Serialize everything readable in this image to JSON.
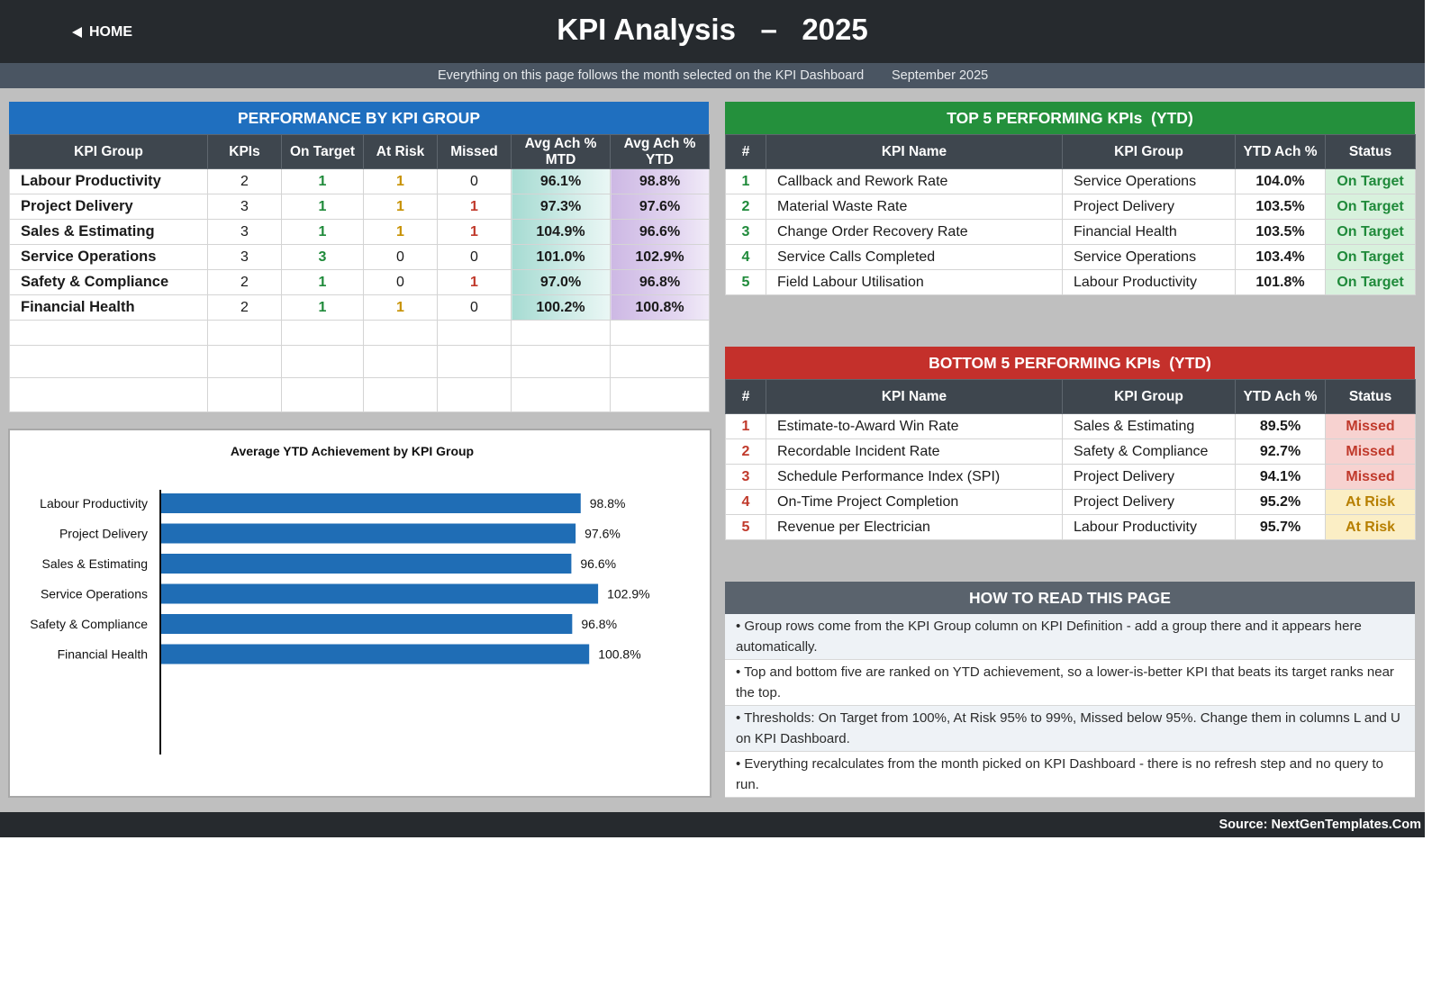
{
  "header": {
    "home_label": "HOME",
    "title_left": "KPI Analysis",
    "title_dash": "–",
    "title_year": "2025",
    "subtitle": "Everything on this page follows the month selected on the KPI Dashboard",
    "selected_month": "September 2025"
  },
  "colors": {
    "group_panel": "#1f6fbf",
    "top_panel": "#24903c",
    "bottom_panel": "#c4302b",
    "howto_panel": "#5a636d",
    "bar": "#1f6db5"
  },
  "groups": {
    "title": "PERFORMANCE BY KPI GROUP",
    "columns": [
      "KPI Group",
      "KPIs",
      "On Target",
      "At Risk",
      "Missed",
      "Avg Ach %\nMTD",
      "Avg Ach %\nYTD"
    ],
    "rows": [
      {
        "name": "Labour Productivity",
        "kpis": "2",
        "on": "1",
        "risk": "1",
        "missed": "0",
        "mtd": "96.1%",
        "ytd": "98.8%"
      },
      {
        "name": "Project Delivery",
        "kpis": "3",
        "on": "1",
        "risk": "1",
        "missed": "1",
        "mtd": "97.3%",
        "ytd": "97.6%"
      },
      {
        "name": "Sales & Estimating",
        "kpis": "3",
        "on": "1",
        "risk": "1",
        "missed": "1",
        "mtd": "104.9%",
        "ytd": "96.6%"
      },
      {
        "name": "Service Operations",
        "kpis": "3",
        "on": "3",
        "risk": "0",
        "missed": "0",
        "mtd": "101.0%",
        "ytd": "102.9%"
      },
      {
        "name": "Safety & Compliance",
        "kpis": "2",
        "on": "1",
        "risk": "0",
        "missed": "1",
        "mtd": "97.0%",
        "ytd": "96.8%"
      },
      {
        "name": "Financial Health",
        "kpis": "2",
        "on": "1",
        "risk": "1",
        "missed": "0",
        "mtd": "100.2%",
        "ytd": "100.8%"
      }
    ]
  },
  "top5": {
    "title": "TOP 5 PERFORMING KPIs  (YTD)",
    "columns": [
      "#",
      "KPI Name",
      "KPI Group",
      "YTD Ach %",
      "Status"
    ],
    "rows": [
      {
        "rank": "1",
        "name": "Callback and Rework Rate",
        "group": "Service Operations",
        "ytd": "104.0%",
        "status": "On Target"
      },
      {
        "rank": "2",
        "name": "Material Waste Rate",
        "group": "Project Delivery",
        "ytd": "103.5%",
        "status": "On Target"
      },
      {
        "rank": "3",
        "name": "Change Order Recovery Rate",
        "group": "Financial Health",
        "ytd": "103.5%",
        "status": "On Target"
      },
      {
        "rank": "4",
        "name": "Service Calls Completed",
        "group": "Service Operations",
        "ytd": "103.4%",
        "status": "On Target"
      },
      {
        "rank": "5",
        "name": "Field Labour Utilisation",
        "group": "Labour Productivity",
        "ytd": "101.8%",
        "status": "On Target"
      }
    ]
  },
  "bottom5": {
    "title": "BOTTOM 5 PERFORMING KPIs  (YTD)",
    "columns": [
      "#",
      "KPI Name",
      "KPI Group",
      "YTD Ach %",
      "Status"
    ],
    "rows": [
      {
        "rank": "1",
        "name": "Estimate-to-Award Win Rate",
        "group": "Sales & Estimating",
        "ytd": "89.5%",
        "status": "Missed"
      },
      {
        "rank": "2",
        "name": "Recordable Incident Rate",
        "group": "Safety & Compliance",
        "ytd": "92.7%",
        "status": "Missed"
      },
      {
        "rank": "3",
        "name": "Schedule Performance Index (SPI)",
        "group": "Project Delivery",
        "ytd": "94.1%",
        "status": "Missed"
      },
      {
        "rank": "4",
        "name": "On-Time Project Completion",
        "group": "Project Delivery",
        "ytd": "95.2%",
        "status": "At Risk"
      },
      {
        "rank": "5",
        "name": "Revenue per Electrician",
        "group": "Labour Productivity",
        "ytd": "95.7%",
        "status": "At Risk"
      }
    ]
  },
  "howto": {
    "title": "HOW TO READ THIS PAGE",
    "items": [
      "•  Group rows come from the KPI Group column on KPI Definition - add a group there and it appears here automatically.",
      "•  Top and bottom five are ranked on YTD achievement, so a lower-is-better KPI that beats its target ranks near the top.",
      "•  Thresholds: On Target from 100%, At Risk 95% to 99%, Missed below 95%. Change them in columns L and U on KPI Dashboard.",
      "•  Everything recalculates from the month picked on KPI Dashboard - there is no refresh step and no query to run."
    ]
  },
  "footer": {
    "source": "Source: NextGenTemplates.Com"
  },
  "chart_data": {
    "type": "bar",
    "orientation": "horizontal",
    "title": "Average YTD Achievement by KPI Group",
    "categories": [
      "Labour Productivity",
      "Project Delivery",
      "Sales & Estimating",
      "Service Operations",
      "Safety & Compliance",
      "Financial Health"
    ],
    "values": [
      98.8,
      97.6,
      96.6,
      102.9,
      96.8,
      100.8
    ],
    "value_labels": [
      "98.8%",
      "97.6%",
      "96.6%",
      "102.9%",
      "96.8%",
      "100.8%"
    ],
    "xlim": [
      0,
      140
    ],
    "grid": false,
    "legend": "none"
  }
}
